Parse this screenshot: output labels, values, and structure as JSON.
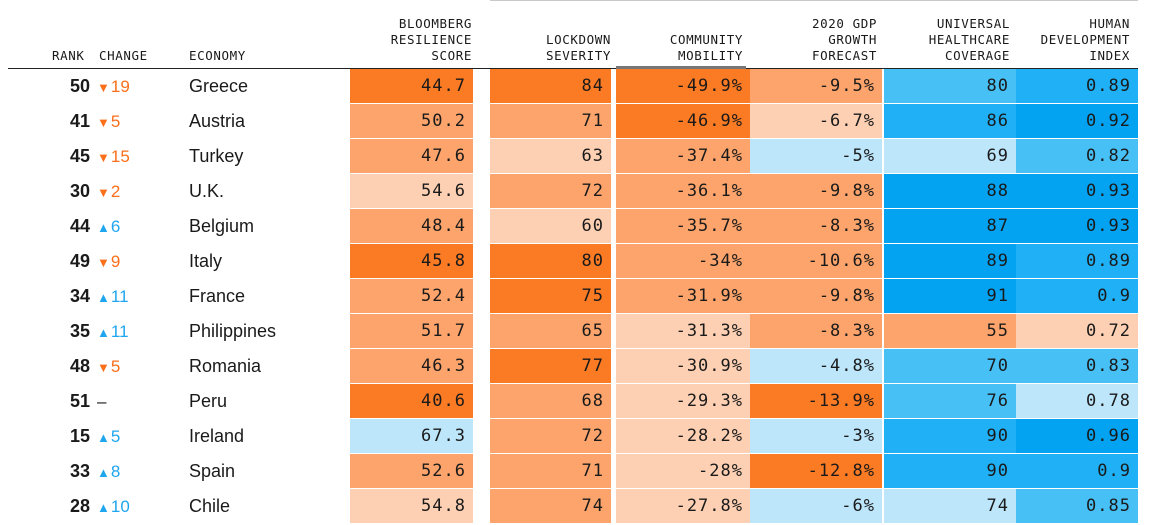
{
  "chart_data": {
    "type": "table",
    "columns": [
      "RANK",
      "CHANGE",
      "ECONOMY",
      "BLOOMBERG\nRESILIENCE\nSCORE",
      "LOCKDOWN\nSEVERITY",
      "COMMUNITY\nMOBILITY",
      "2020 GDP\nGROWTH\nFORECAST",
      "UNIVERSAL\nHEALTHCARE\nCOVERAGE",
      "HUMAN\nDEVELOPMENT\nINDEX"
    ],
    "rows": [
      {
        "rank": "50",
        "dir": "down",
        "change": "19",
        "economy": "Greece",
        "resilience": "44.7",
        "lockdown": "84",
        "mobility": "-49.9%",
        "gdp": "-9.5%",
        "uhc": "80",
        "hdi": "0.89"
      },
      {
        "rank": "41",
        "dir": "down",
        "change": "5",
        "economy": "Austria",
        "resilience": "50.2",
        "lockdown": "71",
        "mobility": "-46.9%",
        "gdp": "-6.7%",
        "uhc": "86",
        "hdi": "0.92"
      },
      {
        "rank": "45",
        "dir": "down",
        "change": "15",
        "economy": "Turkey",
        "resilience": "47.6",
        "lockdown": "63",
        "mobility": "-37.4%",
        "gdp": "-5%",
        "uhc": "69",
        "hdi": "0.82"
      },
      {
        "rank": "30",
        "dir": "down",
        "change": "2",
        "economy": "U.K.",
        "resilience": "54.6",
        "lockdown": "72",
        "mobility": "-36.1%",
        "gdp": "-9.8%",
        "uhc": "88",
        "hdi": "0.93"
      },
      {
        "rank": "44",
        "dir": "up",
        "change": "6",
        "economy": "Belgium",
        "resilience": "48.4",
        "lockdown": "60",
        "mobility": "-35.7%",
        "gdp": "-8.3%",
        "uhc": "87",
        "hdi": "0.93"
      },
      {
        "rank": "49",
        "dir": "down",
        "change": "9",
        "economy": "Italy",
        "resilience": "45.8",
        "lockdown": "80",
        "mobility": "-34%",
        "gdp": "-10.6%",
        "uhc": "89",
        "hdi": "0.89"
      },
      {
        "rank": "34",
        "dir": "up",
        "change": "11",
        "economy": "France",
        "resilience": "52.4",
        "lockdown": "75",
        "mobility": "-31.9%",
        "gdp": "-9.8%",
        "uhc": "91",
        "hdi": "0.9"
      },
      {
        "rank": "35",
        "dir": "up",
        "change": "11",
        "economy": "Philippines",
        "resilience": "51.7",
        "lockdown": "65",
        "mobility": "-31.3%",
        "gdp": "-8.3%",
        "uhc": "55",
        "hdi": "0.72"
      },
      {
        "rank": "48",
        "dir": "down",
        "change": "5",
        "economy": "Romania",
        "resilience": "46.3",
        "lockdown": "77",
        "mobility": "-30.9%",
        "gdp": "-4.8%",
        "uhc": "70",
        "hdi": "0.83"
      },
      {
        "rank": "51",
        "dir": "none",
        "change": "–",
        "economy": "Peru",
        "resilience": "40.6",
        "lockdown": "68",
        "mobility": "-29.3%",
        "gdp": "-13.9%",
        "uhc": "76",
        "hdi": "0.78"
      },
      {
        "rank": "15",
        "dir": "up",
        "change": "5",
        "economy": "Ireland",
        "resilience": "67.3",
        "lockdown": "72",
        "mobility": "-28.2%",
        "gdp": "-3%",
        "uhc": "90",
        "hdi": "0.96"
      },
      {
        "rank": "33",
        "dir": "up",
        "change": "8",
        "economy": "Spain",
        "resilience": "52.6",
        "lockdown": "71",
        "mobility": "-28%",
        "gdp": "-12.8%",
        "uhc": "90",
        "hdi": "0.9"
      },
      {
        "rank": "28",
        "dir": "up",
        "change": "10",
        "economy": "Chile",
        "resilience": "54.8",
        "lockdown": "74",
        "mobility": "-27.8%",
        "gdp": "-6%",
        "uhc": "74",
        "hdi": "0.85"
      }
    ],
    "cell_colors": [
      [
        "#fb7a24",
        "#fb7a24",
        "#fb7a24",
        "#fca46b",
        "#47c0f5",
        "#1fb0f5"
      ],
      [
        "#fca46b",
        "#fca46b",
        "#fb7a24",
        "#fdd0b3",
        "#1fb0f5",
        "#03a3f2"
      ],
      [
        "#fca46b",
        "#fdd0b3",
        "#fca46b",
        "#bde6fb",
        "#bde6fb",
        "#47c0f5"
      ],
      [
        "#fdd0b3",
        "#fca46b",
        "#fca46b",
        "#fca46b",
        "#03a3f2",
        "#03a3f2"
      ],
      [
        "#fca46b",
        "#fdd0b3",
        "#fca46b",
        "#fca46b",
        "#03a3f2",
        "#03a3f2"
      ],
      [
        "#fb7a24",
        "#fb7a24",
        "#fca46b",
        "#fca46b",
        "#03a3f2",
        "#1fb0f5"
      ],
      [
        "#fca46b",
        "#fb7a24",
        "#fca46b",
        "#fca46b",
        "#03a3f2",
        "#1fb0f5"
      ],
      [
        "#fca46b",
        "#fca46b",
        "#fdd0b3",
        "#fca46b",
        "#fca46b",
        "#fdd0b3"
      ],
      [
        "#fca46b",
        "#fb7a24",
        "#fdd0b3",
        "#bde6fb",
        "#47c0f5",
        "#47c0f5"
      ],
      [
        "#fb7a24",
        "#fca46b",
        "#fdd0b3",
        "#fb7a24",
        "#47c0f5",
        "#bde6fb"
      ],
      [
        "#bde6fb",
        "#fca46b",
        "#fdd0b3",
        "#bde6fb",
        "#1fb0f5",
        "#03a3f2"
      ],
      [
        "#fca46b",
        "#fca46b",
        "#fdd0b3",
        "#fb7a24",
        "#1fb0f5",
        "#1fb0f5"
      ],
      [
        "#fdd0b3",
        "#fca46b",
        "#fdd0b3",
        "#bde6fb",
        "#bde6fb",
        "#47c0f5"
      ]
    ],
    "change_colors": {
      "up": "#1fa6ef",
      "down": "#fa6f1a",
      "none": "#1a1a1a"
    },
    "sorted_by": "COMMUNITY\nMOBILITY"
  }
}
